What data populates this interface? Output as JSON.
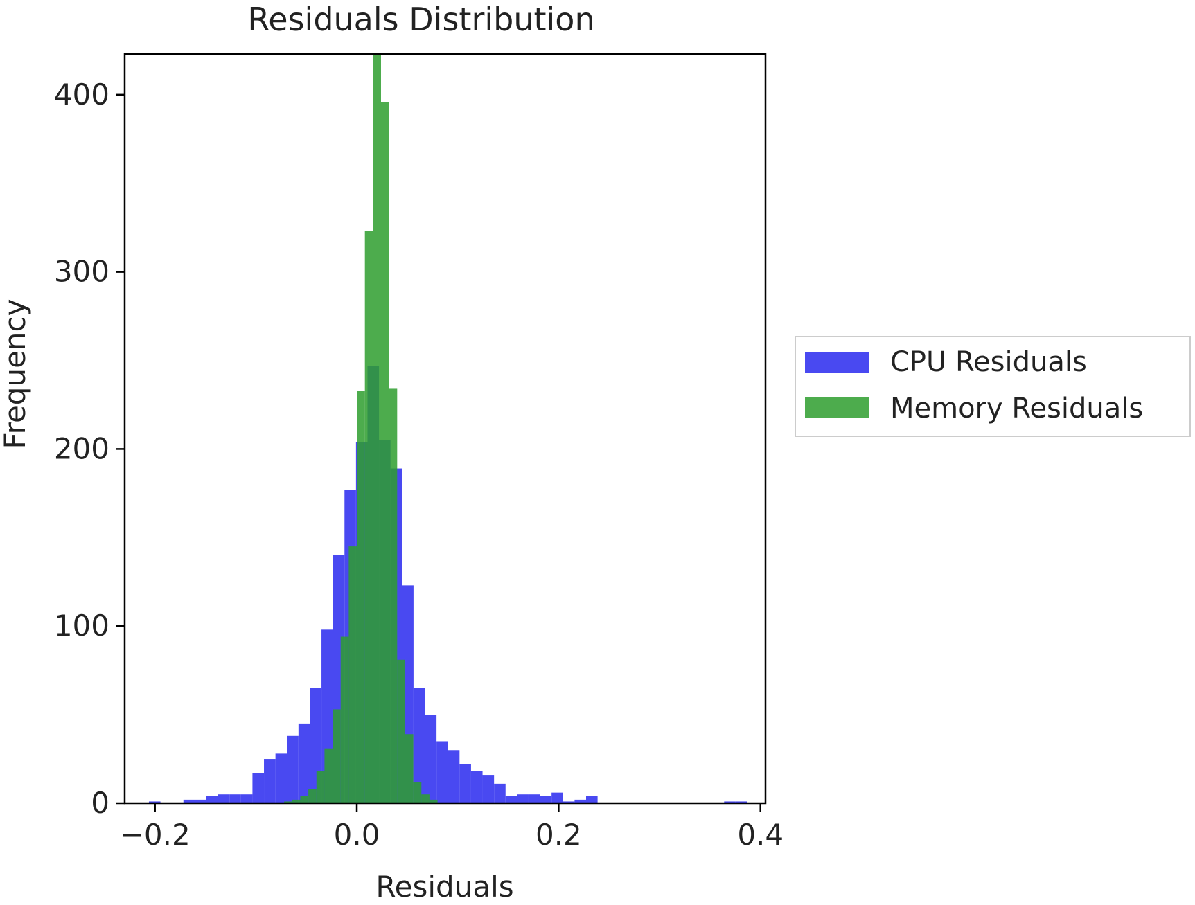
{
  "chart_data": {
    "type": "histogram",
    "title": "Residuals Distribution",
    "xlabel": "Residuals",
    "ylabel": "Frequency",
    "xlim": [
      -0.23,
      0.405
    ],
    "ylim": [
      0,
      423
    ],
    "x_ticks": [
      -0.2,
      0.0,
      0.2,
      0.4
    ],
    "x_tick_labels": [
      "−0.2",
      "0.0",
      "0.2",
      "0.4"
    ],
    "y_ticks": [
      0,
      100,
      200,
      300,
      400
    ],
    "y_tick_labels": [
      "0",
      "100",
      "200",
      "300",
      "400"
    ],
    "legend_position": "outside-right",
    "series": [
      {
        "name": "CPU Residuals",
        "color": "#3f3ff0",
        "opacity": 0.95,
        "bin_edges": [
          -0.206,
          -0.1946,
          -0.1832,
          -0.1718,
          -0.1604,
          -0.149,
          -0.1376,
          -0.1262,
          -0.1148,
          -0.1034,
          -0.092,
          -0.0806,
          -0.0692,
          -0.0578,
          -0.0464,
          -0.035,
          -0.0236,
          -0.0122,
          -0.0008,
          0.0106,
          0.022,
          0.0334,
          0.0448,
          0.0562,
          0.0676,
          0.079,
          0.0904,
          0.1018,
          0.1132,
          0.1246,
          0.136,
          0.1474,
          0.1588,
          0.1702,
          0.1816,
          0.193,
          0.2044,
          0.2158,
          0.2272,
          0.2386,
          0.25,
          0.2614,
          0.2728,
          0.2842,
          0.2956,
          0.307,
          0.3184,
          0.3298,
          0.3412,
          0.3526,
          0.364,
          0.3754,
          0.3868
        ],
        "counts": [
          1,
          0,
          0,
          2,
          2,
          4,
          5,
          5,
          5,
          17,
          25,
          28,
          38,
          45,
          65,
          98,
          140,
          177,
          204,
          247,
          205,
          189,
          123,
          65,
          50,
          35,
          30,
          22,
          18,
          16,
          11,
          4,
          5,
          5,
          4,
          6,
          1,
          2,
          4,
          0,
          0,
          0,
          0,
          0,
          0,
          0,
          0,
          0,
          0,
          0,
          1,
          1
        ]
      },
      {
        "name": "Memory Residuals",
        "color": "#2e9e2e",
        "opacity": 0.85,
        "bin_edges": [
          -0.072,
          -0.064,
          -0.056,
          -0.048,
          -0.04,
          -0.032,
          -0.024,
          -0.016,
          -0.008,
          0.0,
          0.008,
          0.016,
          0.024,
          0.032,
          0.04,
          0.048,
          0.056,
          0.064,
          0.072,
          0.08
        ],
        "counts": [
          1,
          2,
          4,
          8,
          18,
          31,
          53,
          94,
          145,
          233,
          323,
          423,
          396,
          234,
          81,
          39,
          12,
          5,
          2
        ]
      }
    ]
  }
}
